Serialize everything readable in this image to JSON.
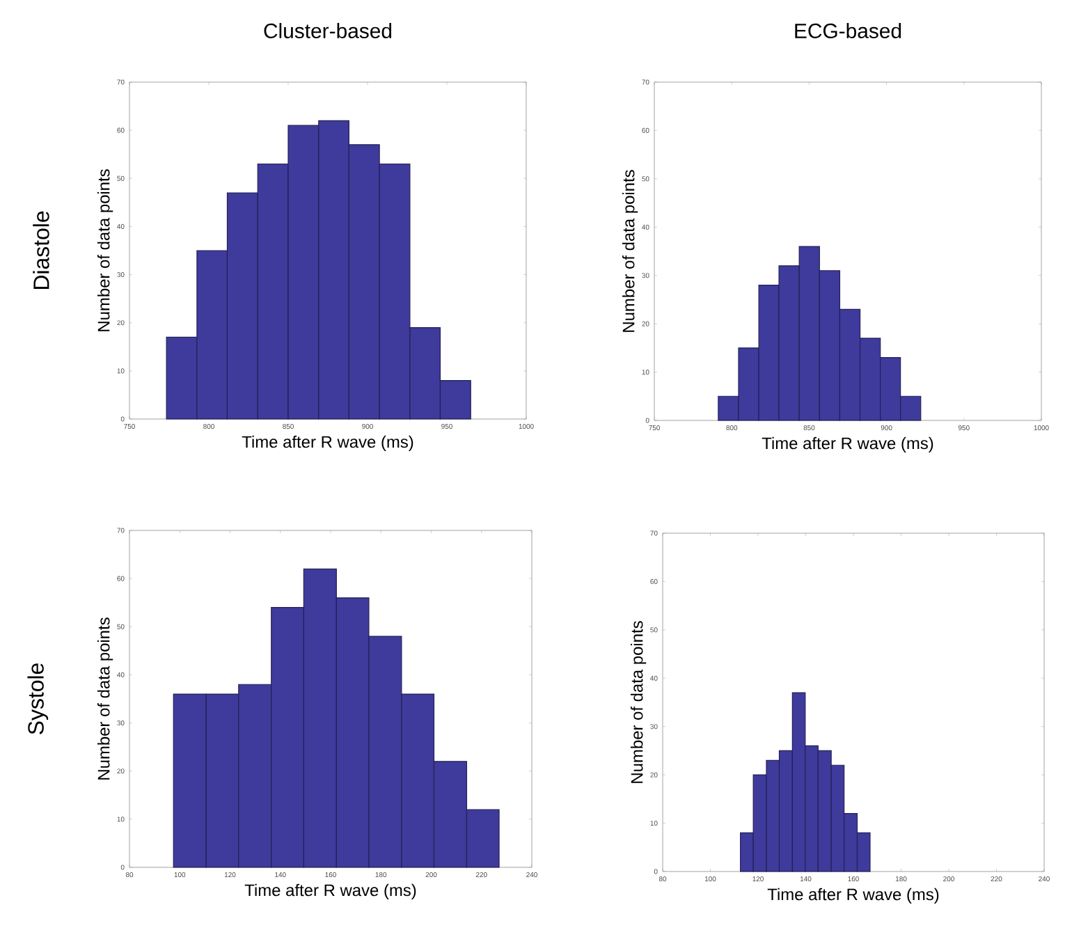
{
  "chart_data": [
    {
      "type": "histogram",
      "title": "Cluster-based",
      "annotations": [
        "Diastole"
      ],
      "xlabel": "Time after R wave (ms)",
      "ylabel": "Number of data points",
      "color": "#3f3b9c",
      "bins": [
        773.3,
        792.5,
        811.6,
        830.8,
        850.0,
        869.2,
        888.3,
        907.5,
        926.7,
        945.8,
        965.0
      ],
      "values": [
        17,
        35,
        47,
        53,
        61,
        62,
        57,
        53,
        19,
        8
      ],
      "xlim": [
        750,
        1000
      ],
      "ylim": [
        0,
        70
      ],
      "xticks": [
        750,
        800,
        850,
        900,
        950,
        1000
      ],
      "yticks": [
        0,
        10,
        20,
        30,
        40,
        50,
        60,
        70
      ]
    },
    {
      "type": "histogram",
      "title": "ECG-based",
      "xlabel": "Time after R wave (ms)",
      "ylabel": "Number of data points",
      "color": "#3f3b9c",
      "bins": [
        791.3,
        804.4,
        817.5,
        830.5,
        843.6,
        856.7,
        869.8,
        882.9,
        896.0,
        909.0,
        922.1
      ],
      "values": [
        5,
        15,
        28,
        32,
        36,
        31,
        23,
        17,
        13,
        5
      ],
      "xlim": [
        750,
        1000
      ],
      "ylim": [
        0,
        70
      ],
      "xticks": [
        750,
        800,
        850,
        900,
        950,
        1000
      ],
      "yticks": [
        0,
        10,
        20,
        30,
        40,
        50,
        60,
        70
      ]
    },
    {
      "type": "histogram",
      "annotations": [
        "Systole"
      ],
      "xlabel": "Time after R wave (ms)",
      "ylabel": "Number of data points",
      "color": "#3f3b9c",
      "bins": [
        97.5,
        110.5,
        123.4,
        136.4,
        149.3,
        162.3,
        175.2,
        188.2,
        201.1,
        214.1,
        227.0
      ],
      "values": [
        36,
        36,
        38,
        54,
        62,
        56,
        48,
        36,
        22,
        12
      ],
      "xlim": [
        80,
        240
      ],
      "ylim": [
        0,
        70
      ],
      "xticks": [
        80,
        100,
        120,
        140,
        160,
        180,
        200,
        220,
        240
      ],
      "yticks": [
        0,
        10,
        20,
        30,
        40,
        50,
        60,
        70
      ]
    },
    {
      "type": "histogram",
      "xlabel": "Time after R wave (ms)",
      "ylabel": "Number of data points",
      "color": "#3f3b9c",
      "bins": [
        112.6,
        118.0,
        123.5,
        128.9,
        134.4,
        139.8,
        145.2,
        150.7,
        156.1,
        161.6,
        167.0
      ],
      "values": [
        8,
        20,
        23,
        25,
        37,
        26,
        25,
        22,
        12,
        8
      ],
      "xlim": [
        80,
        240
      ],
      "ylim": [
        0,
        70
      ],
      "xticks": [
        80,
        100,
        120,
        140,
        160,
        180,
        200,
        220,
        240
      ],
      "yticks": [
        0,
        10,
        20,
        30,
        40,
        50,
        60,
        70
      ]
    }
  ]
}
